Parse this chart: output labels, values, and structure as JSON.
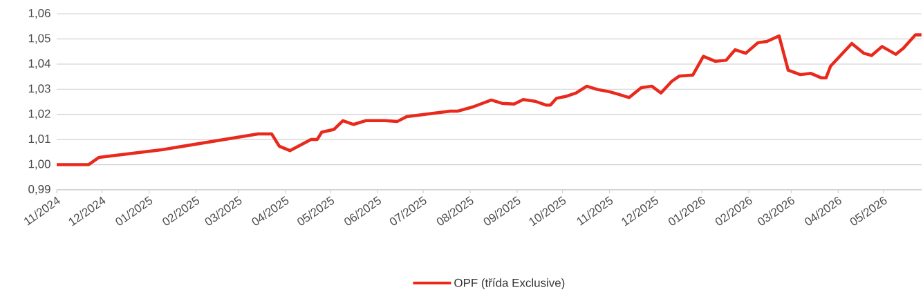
{
  "chart_data": {
    "type": "line",
    "x": [
      "2024-11-01",
      "2024-11-22",
      "2024-11-29",
      "2025-01-10",
      "2025-03-14",
      "2025-03-23",
      "2025-03-28",
      "2025-04-04",
      "2025-04-18",
      "2025-04-22",
      "2025-04-25",
      "2025-05-03",
      "2025-05-09",
      "2025-05-16",
      "2025-05-24",
      "2025-06-06",
      "2025-06-14",
      "2025-06-20",
      "2025-07-19",
      "2025-07-24",
      "2025-08-03",
      "2025-08-15",
      "2025-08-22",
      "2025-08-30",
      "2025-09-05",
      "2025-09-13",
      "2025-09-20",
      "2025-09-23",
      "2025-09-27",
      "2025-10-03",
      "2025-10-10",
      "2025-10-17",
      "2025-10-24",
      "2025-11-01",
      "2025-11-07",
      "2025-11-14",
      "2025-11-22",
      "2025-11-29",
      "2025-12-05",
      "2025-12-12",
      "2025-12-17",
      "2025-12-26",
      "2026-01-02",
      "2026-01-10",
      "2026-01-17",
      "2026-01-23",
      "2026-01-30",
      "2026-02-07",
      "2026-02-13",
      "2026-02-21",
      "2026-02-27",
      "2026-03-07",
      "2026-03-14",
      "2026-03-21",
      "2026-03-24",
      "2026-03-27",
      "2026-04-10",
      "2026-04-18",
      "2026-04-23",
      "2026-04-30",
      "2026-05-09",
      "2026-05-14",
      "2026-05-22",
      "2026-05-26"
    ],
    "series": [
      {
        "name": "OPF (třída Exclusive)",
        "color": "#e8291c",
        "values": [
          1.0,
          1.0,
          1.0029,
          1.006,
          1.0122,
          1.0122,
          1.0073,
          1.0056,
          1.01,
          1.01,
          1.0129,
          1.014,
          1.0175,
          1.016,
          1.0175,
          1.0175,
          1.0172,
          1.0191,
          1.0213,
          1.0213,
          1.023,
          1.0257,
          1.0244,
          1.0241,
          1.0259,
          1.0252,
          1.0237,
          1.0237,
          1.0264,
          1.0271,
          1.0285,
          1.0312,
          1.0299,
          1.029,
          1.028,
          1.0267,
          1.0306,
          1.0312,
          1.0285,
          1.0331,
          1.0352,
          1.0356,
          1.0431,
          1.0411,
          1.0415,
          1.0457,
          1.0443,
          1.0485,
          1.049,
          1.0512,
          1.0376,
          1.0358,
          1.0363,
          1.0345,
          1.0345,
          1.0392,
          1.0482,
          1.0443,
          1.0434,
          1.047,
          1.0439,
          1.0463,
          1.0516,
          1.0516
        ]
      }
    ],
    "xlim": [
      "2024-11-01",
      "2026-05-26"
    ],
    "xticks": [
      {
        "value": "2024-11-01",
        "label": "11/2024"
      },
      {
        "value": "2024-12-01",
        "label": "12/2024"
      },
      {
        "value": "2025-01-01",
        "label": "01/2025"
      },
      {
        "value": "2025-02-01",
        "label": "02/2025"
      },
      {
        "value": "2025-03-01",
        "label": "03/2025"
      },
      {
        "value": "2025-04-01",
        "label": "04/2025"
      },
      {
        "value": "2025-05-01",
        "label": "05/2025"
      },
      {
        "value": "2025-06-01",
        "label": "06/2025"
      },
      {
        "value": "2025-07-01",
        "label": "07/2025"
      },
      {
        "value": "2025-08-01",
        "label": "08/2025"
      },
      {
        "value": "2025-09-01",
        "label": "09/2025"
      },
      {
        "value": "2025-10-01",
        "label": "10/2025"
      },
      {
        "value": "2025-11-01",
        "label": "11/2025"
      },
      {
        "value": "2025-12-01",
        "label": "12/2025"
      },
      {
        "value": "2026-01-01",
        "label": "01/2026"
      },
      {
        "value": "2026-02-01",
        "label": "02/2026"
      },
      {
        "value": "2026-03-01",
        "label": "03/2026"
      },
      {
        "value": "2026-04-01",
        "label": "04/2026"
      },
      {
        "value": "2026-05-01",
        "label": "05/2026"
      }
    ],
    "ylim": [
      0.99,
      1.06
    ],
    "yticks": [
      {
        "value": 0.99,
        "label": "0,99"
      },
      {
        "value": 1.0,
        "label": "1,00"
      },
      {
        "value": 1.01,
        "label": "1,01"
      },
      {
        "value": 1.02,
        "label": "1,02"
      },
      {
        "value": 1.03,
        "label": "1,03"
      },
      {
        "value": 1.04,
        "label": "1,04"
      },
      {
        "value": 1.05,
        "label": "1,05"
      },
      {
        "value": 1.06,
        "label": "1,06"
      }
    ],
    "grid": "y",
    "legend": "bottom"
  }
}
